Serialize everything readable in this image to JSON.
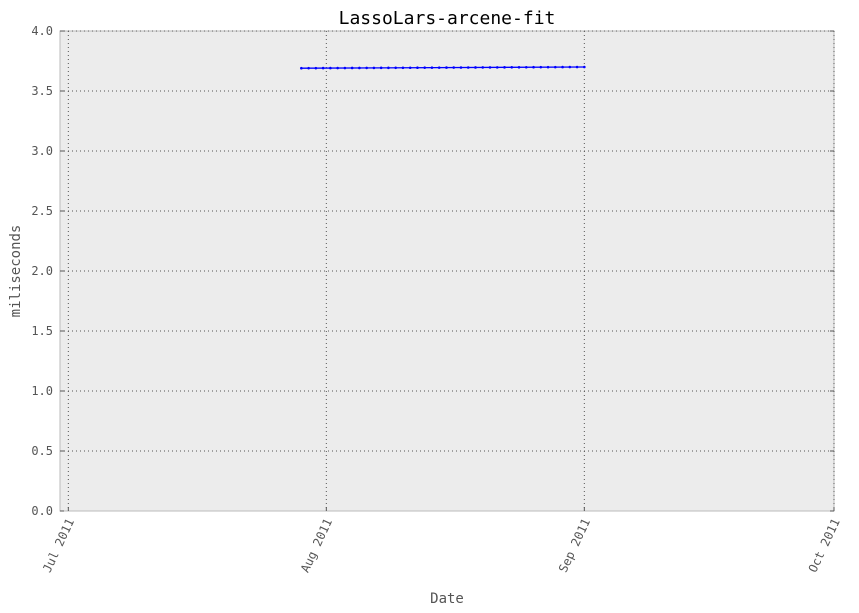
{
  "chart_data": {
    "type": "line",
    "title": "LassoLars-arcene-fit",
    "xlabel": "Date",
    "ylabel": "miliseconds",
    "x_ticks": [
      "Jul 2011",
      "Aug 2011",
      "Sep 2011",
      "Oct 2011"
    ],
    "x_tick_dates": [
      "2011-07-01",
      "2011-08-01",
      "2011-09-01",
      "2011-10-01"
    ],
    "xlim": [
      "2011-06-30",
      "2011-10-01"
    ],
    "ylim": [
      0.0,
      4.0
    ],
    "y_ticks": [
      "0.0",
      "0.5",
      "1.0",
      "1.5",
      "2.0",
      "2.5",
      "3.0",
      "3.5",
      "4.0"
    ],
    "grid": true,
    "series": [
      {
        "color": "#0000ff",
        "x": [
          "2011-07-29",
          "2011-09-01"
        ],
        "y": [
          3.69,
          3.7
        ],
        "marker_count": 40
      }
    ],
    "colors": {
      "background": "#ececec",
      "grid": "#555555",
      "frame": "#bbbbbb"
    }
  }
}
